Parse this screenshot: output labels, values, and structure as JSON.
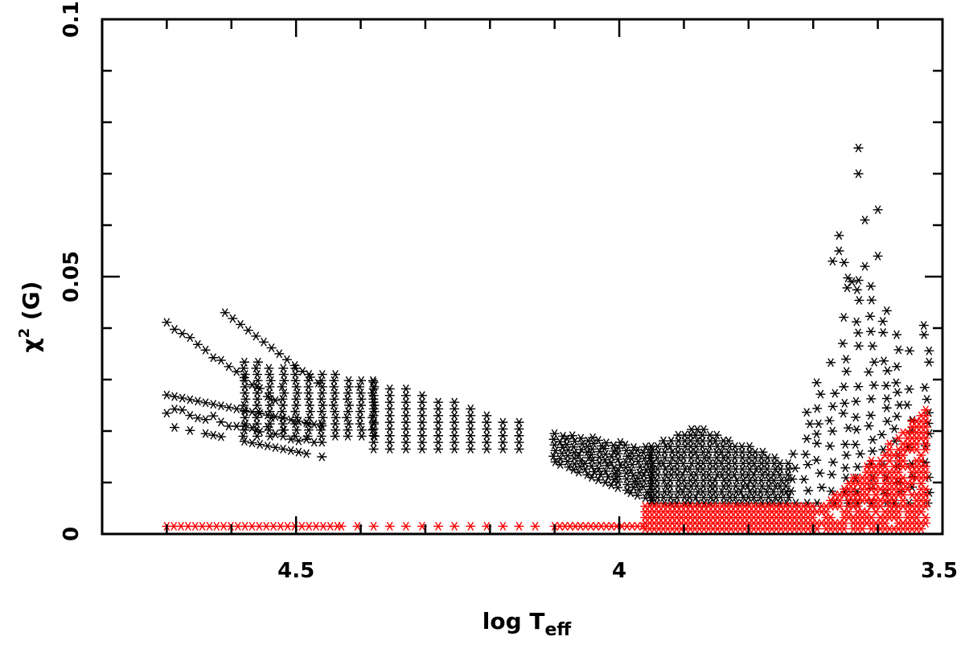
{
  "chart_data": {
    "type": "scatter",
    "xlabel": {
      "main": "log  T",
      "sub": "eff"
    },
    "ylabel": {
      "symbol": "χ",
      "sup": "2",
      "rest": " (G)"
    },
    "xlim": [
      4.8,
      3.5
    ],
    "ylim": [
      0,
      0.1
    ],
    "x_axis_reversed": true,
    "x_major_ticks": [
      4.5,
      4,
      3.5
    ],
    "x_tick_labels": [
      "4.5",
      "4",
      "3.5"
    ],
    "y_major_ticks": [
      0,
      0.05,
      0.1
    ],
    "y_tick_labels": [
      "0",
      "0.05",
      "0.1"
    ],
    "grid": false,
    "legend": "none",
    "marker": "asterisk",
    "series_colors": {
      "model_grid": "#000000",
      "lower_envelope": "#ff0000"
    },
    "series": [
      {
        "color": "#000000",
        "description_points": [
          [
            4.7,
            0.041
          ],
          [
            4.65,
            0.036
          ],
          [
            4.6,
            0.032
          ],
          [
            4.55,
            0.029
          ],
          [
            4.5,
            0.027
          ],
          [
            4.7,
            0.027
          ],
          [
            4.65,
            0.025
          ],
          [
            4.6,
            0.023
          ],
          [
            4.55,
            0.022
          ],
          [
            4.5,
            0.021
          ],
          [
            4.61,
            0.043
          ],
          [
            4.58,
            0.04
          ],
          [
            4.55,
            0.036
          ],
          [
            4.45,
            0.03
          ],
          [
            4.4,
            0.03
          ],
          [
            4.35,
            0.029
          ],
          [
            4.3,
            0.025
          ],
          [
            4.25,
            0.022
          ],
          [
            4.2,
            0.021
          ],
          [
            4.1,
            0.02
          ],
          [
            4.05,
            0.019
          ],
          [
            4.0,
            0.018
          ],
          [
            3.9,
            0.02
          ],
          [
            3.85,
            0.017
          ],
          [
            3.8,
            0.014
          ],
          [
            3.75,
            0.013
          ],
          [
            3.7,
            0.017
          ],
          [
            3.67,
            0.025
          ],
          [
            3.66,
            0.045
          ],
          [
            3.65,
            0.058
          ],
          [
            3.63,
            0.075
          ],
          [
            3.63,
            0.07
          ],
          [
            3.62,
            0.06
          ],
          [
            3.6,
            0.063
          ],
          [
            3.6,
            0.054
          ],
          [
            3.58,
            0.043
          ],
          [
            3.55,
            0.041
          ],
          [
            3.52,
            0.042
          ]
        ]
      },
      {
        "color": "#ff0000",
        "description_points": [
          [
            4.7,
            0.0015
          ],
          [
            4.5,
            0.0015
          ],
          [
            4.3,
            0.0015
          ],
          [
            4.2,
            0.0015
          ],
          [
            4.0,
            0.0015
          ],
          [
            3.96,
            0.005
          ],
          [
            3.85,
            0.005
          ],
          [
            3.75,
            0.0045
          ],
          [
            3.68,
            0.006
          ],
          [
            3.63,
            0.009
          ],
          [
            3.6,
            0.012
          ],
          [
            3.57,
            0.015
          ],
          [
            3.55,
            0.019
          ],
          [
            3.52,
            0.025
          ]
        ]
      }
    ]
  }
}
